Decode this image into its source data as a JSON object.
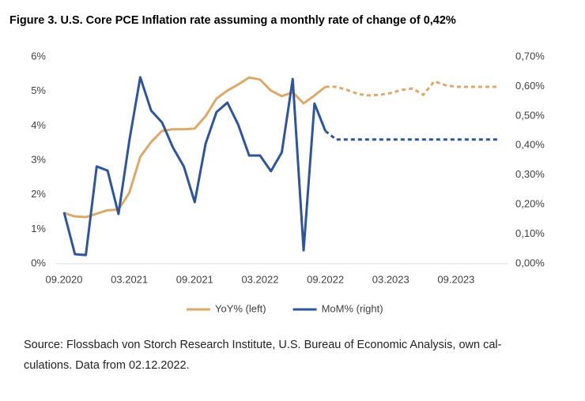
{
  "chart_data": {
    "type": "line",
    "title": "Figure 3. U.S. Core PCE Inflation rate assuming a monthly rate of change of 0,42%",
    "categories": [
      "09.2020",
      null,
      null,
      null,
      null,
      null,
      "03.2021",
      null,
      null,
      null,
      null,
      null,
      "09.2021",
      null,
      null,
      null,
      null,
      null,
      "03.2022",
      null,
      null,
      null,
      null,
      null,
      "09.2022",
      null,
      null,
      null,
      null,
      null,
      "03.2023",
      null,
      null,
      null,
      null,
      null,
      "09.2023",
      null,
      null,
      null,
      null
    ],
    "series": [
      {
        "name": "YoY% (left)",
        "color": "#dba96b",
        "dashed_from": 24,
        "values": [
          1.47,
          1.37,
          1.35,
          1.45,
          1.55,
          1.57,
          2.06,
          3.1,
          3.53,
          3.85,
          3.9,
          3.9,
          3.92,
          4.28,
          4.79,
          5.02,
          5.2,
          5.4,
          5.34,
          5.02,
          4.86,
          4.97,
          4.65,
          4.88,
          5.13,
          5.13,
          5.04,
          4.92,
          4.88,
          4.9,
          4.95,
          5.04,
          5.08,
          4.9,
          5.29,
          5.18,
          5.13,
          5.13,
          5.13,
          5.13,
          5.13
        ]
      },
      {
        "name": "MoM% (right)",
        "color": "#2f5597",
        "axis": "y2",
        "dashed_from": 24,
        "values": [
          0.174,
          0.032,
          0.029,
          0.329,
          0.315,
          0.168,
          0.417,
          0.631,
          0.518,
          0.478,
          0.393,
          0.329,
          0.208,
          0.406,
          0.513,
          0.545,
          0.47,
          0.366,
          0.366,
          0.313,
          0.377,
          0.625,
          0.045,
          0.542,
          0.449,
          0.42,
          0.42,
          0.42,
          0.42,
          0.42,
          0.42,
          0.42,
          0.42,
          0.42,
          0.42,
          0.42,
          0.42,
          0.42,
          0.42,
          0.42,
          0.42
        ]
      }
    ],
    "ylim": [
      0,
      6
    ],
    "yticks": [
      {
        "value": 0,
        "label": "0%"
      },
      {
        "value": 1,
        "label": "1%"
      },
      {
        "value": 2,
        "label": "2%"
      },
      {
        "value": 3,
        "label": "3%"
      },
      {
        "value": 4,
        "label": "4%"
      },
      {
        "value": 5,
        "label": "5%"
      },
      {
        "value": 6,
        "label": "6%"
      }
    ],
    "y2lim": [
      0,
      0.7
    ],
    "y2ticks": [
      {
        "value": 0,
        "label": "0,00%"
      },
      {
        "value": 0.1,
        "label": "0,10%"
      },
      {
        "value": 0.2,
        "label": "0,20%"
      },
      {
        "value": 0.3,
        "label": "0,30%"
      },
      {
        "value": 0.4,
        "label": "0,40%"
      },
      {
        "value": 0.5,
        "label": "0,50%"
      },
      {
        "value": 0.6,
        "label": "0,60%"
      },
      {
        "value": 0.7,
        "label": "0,70%"
      }
    ],
    "grid": false,
    "legend": "bottom",
    "source": [
      "Source: Flossbach von Storch Research Institute, U.S. Bureau of Economic Analysis, own cal-",
      "culations. Data from 02.12.2022."
    ]
  }
}
